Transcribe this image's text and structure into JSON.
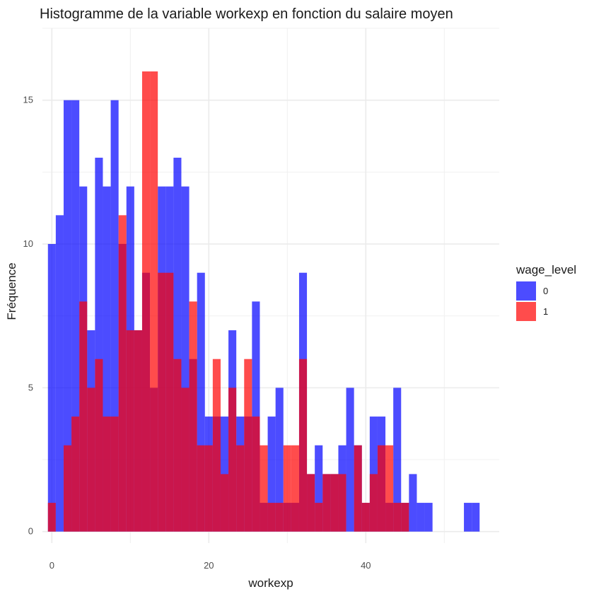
{
  "chart_data": {
    "type": "bar",
    "title": "Histogramme de la variable workexp en fonction du salaire moyen",
    "xlabel": "workexp",
    "ylabel": "Fréquence",
    "xlim": [
      -1.2,
      57
    ],
    "ylim": [
      -0.4,
      17.5
    ],
    "xticks": [
      0,
      20,
      40
    ],
    "yticks": [
      0,
      5,
      10,
      15
    ],
    "grid": true,
    "legend": {
      "title": "wage_level",
      "position": "right"
    },
    "series": [
      {
        "name": "0",
        "color": "#0000ff",
        "x": [
          0,
          1,
          2,
          3,
          4,
          5,
          6,
          7,
          8,
          9,
          10,
          11,
          12,
          13,
          14,
          15,
          16,
          17,
          18,
          19,
          20,
          21,
          22,
          23,
          24,
          25,
          26,
          27,
          28,
          29,
          30,
          31,
          32,
          33,
          34,
          35,
          36,
          37,
          38,
          39,
          40,
          41,
          42,
          43,
          44,
          45,
          46,
          47,
          48,
          49,
          50,
          51,
          52,
          53,
          54,
          55
        ],
        "values": [
          10,
          11,
          15,
          15,
          12,
          7,
          13,
          12,
          15,
          10,
          12,
          7,
          9,
          5,
          12,
          12,
          13,
          12,
          6,
          9,
          4,
          4,
          4,
          7,
          4,
          4,
          8,
          1,
          4,
          5,
          1,
          1,
          9,
          2,
          3,
          2,
          2,
          3,
          5,
          3,
          1,
          4,
          4,
          1,
          5,
          1,
          2,
          1,
          1,
          0,
          0,
          0,
          0,
          1,
          1,
          0
        ]
      },
      {
        "name": "1",
        "color": "#ff0000",
        "x": [
          0,
          1,
          2,
          3,
          4,
          5,
          6,
          7,
          8,
          9,
          10,
          11,
          12,
          13,
          14,
          15,
          16,
          17,
          18,
          19,
          20,
          21,
          22,
          23,
          24,
          25,
          26,
          27,
          28,
          29,
          30,
          31,
          32,
          33,
          34,
          35,
          36,
          37,
          38,
          39,
          40,
          41,
          42,
          43,
          44,
          45,
          46,
          47,
          48,
          49,
          50,
          51,
          52,
          53,
          54,
          55
        ],
        "values": [
          1,
          0,
          3,
          4,
          8,
          5,
          6,
          4,
          4,
          11,
          7,
          7,
          16,
          16,
          9,
          9,
          6,
          5,
          8,
          3,
          3,
          6,
          2,
          5,
          3,
          6,
          4,
          3,
          1,
          1,
          3,
          3,
          6,
          2,
          1,
          2,
          2,
          2,
          0,
          3,
          1,
          2,
          3,
          3,
          1,
          1,
          0,
          0,
          0,
          0,
          0,
          0,
          0,
          0,
          0,
          0
        ]
      }
    ]
  }
}
